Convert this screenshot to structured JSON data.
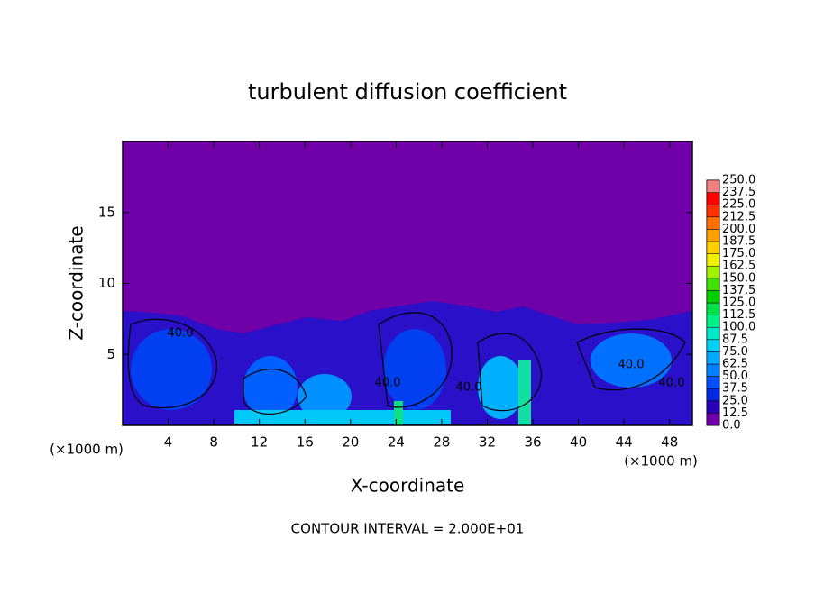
{
  "chart_data": {
    "type": "contour",
    "title": "turbulent diffusion coefficient",
    "xlabel": "X-coordinate",
    "ylabel": "Z-coordinate",
    "x_unit_left": "(×1000 m)",
    "x_unit_right": "(×1000 m)",
    "footer": "CONTOUR INTERVAL = 2.000E+01",
    "xlim": [
      0,
      50
    ],
    "xticks": [
      4,
      8,
      12,
      16,
      20,
      24,
      28,
      32,
      36,
      40,
      44,
      48
    ],
    "ylim": [
      0,
      20
    ],
    "yticks": [
      5,
      10,
      15
    ],
    "contour_labels": [
      {
        "value": 40,
        "label": "40.0"
      },
      {
        "value": 40,
        "label": "40.0"
      },
      {
        "value": 40,
        "label": "40.0"
      },
      {
        "value": 40,
        "label": "40.0"
      },
      {
        "value": 40,
        "label": "40.0"
      }
    ],
    "colorbar": {
      "levels": [
        {
          "value": 0,
          "label": "0.0"
        },
        {
          "value": 12.5,
          "label": "12.5"
        },
        {
          "value": 25,
          "label": "25.0"
        },
        {
          "value": 37.5,
          "label": "37.5"
        },
        {
          "value": 50,
          "label": "50.0"
        },
        {
          "value": 62.5,
          "label": "62.5"
        },
        {
          "value": 75,
          "label": "75.0"
        },
        {
          "value": 87.5,
          "label": "87.5"
        },
        {
          "value": 100,
          "label": "100.0"
        },
        {
          "value": 112.5,
          "label": "112.5"
        },
        {
          "value": 125,
          "label": "125.0"
        },
        {
          "value": 137.5,
          "label": "137.5"
        },
        {
          "value": 150,
          "label": "150.0"
        },
        {
          "value": 162.5,
          "label": "162.5"
        },
        {
          "value": 175,
          "label": "175.0"
        },
        {
          "value": 187.5,
          "label": "187.5"
        },
        {
          "value": 200,
          "label": "200.0"
        },
        {
          "value": 212.5,
          "label": "212.5"
        },
        {
          "value": 225,
          "label": "225.0"
        },
        {
          "value": 237.5,
          "label": "237.5"
        },
        {
          "value": 250,
          "label": "250.0"
        }
      ],
      "colors": [
        "#7000a8",
        "#2800b8",
        "#0028e0",
        "#0050ff",
        "#0080ff",
        "#00a8ff",
        "#00d0f8",
        "#00e8c8",
        "#00f088",
        "#00e048",
        "#00d000",
        "#40e000",
        "#a0f000",
        "#f0f000",
        "#ffd000",
        "#ffa000",
        "#ff7000",
        "#ff3000",
        "#ff0000",
        "#f08080"
      ]
    }
  }
}
